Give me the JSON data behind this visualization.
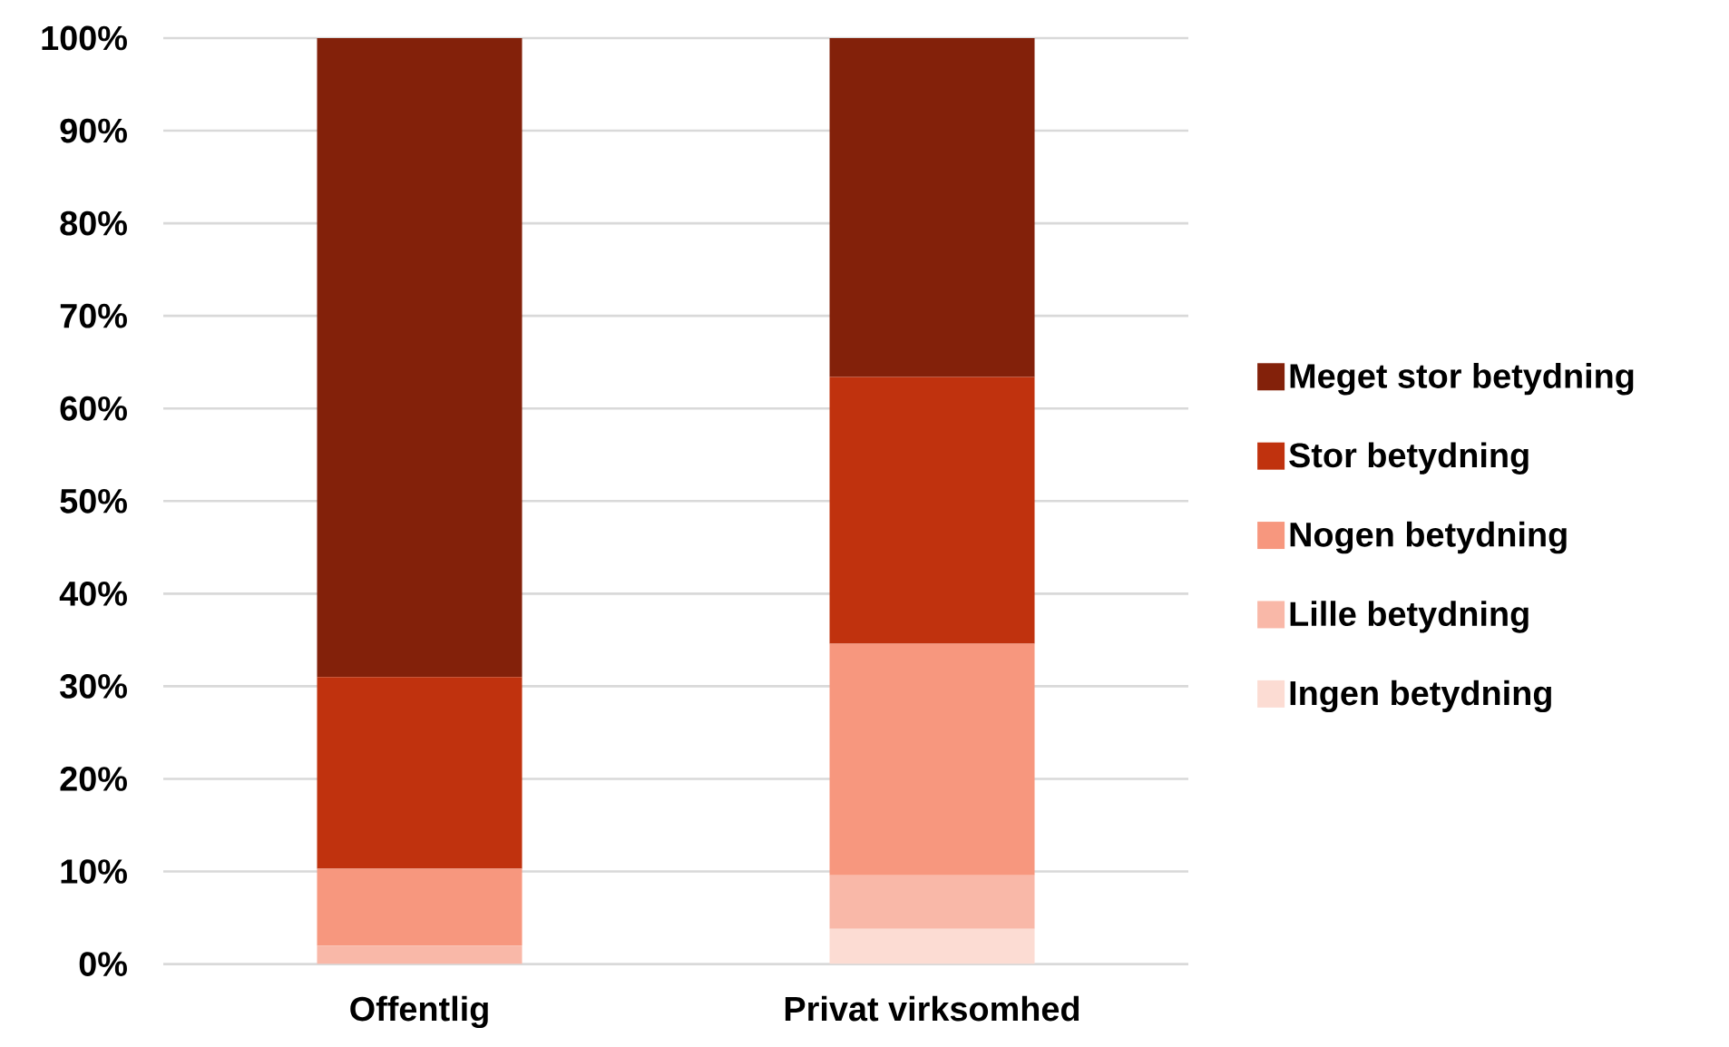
{
  "chart_data": {
    "type": "bar",
    "stacked": true,
    "categories": [
      "Offentlig",
      "Privat virksomhed"
    ],
    "series": [
      {
        "name": "Ingen betydning",
        "color": "#fcdcd3",
        "values": [
          0,
          3.8
        ]
      },
      {
        "name": "Lille betydning",
        "color": "#f9b8a8",
        "values": [
          2.0,
          5.8
        ]
      },
      {
        "name": "Nogen betydning",
        "color": "#f7977e",
        "values": [
          8.3,
          25.0
        ]
      },
      {
        "name": "Stor betydning",
        "color": "#c0320e",
        "values": [
          20.7,
          28.8
        ]
      },
      {
        "name": "Meget stor betydning",
        "color": "#83210a",
        "values": [
          69.0,
          36.6
        ]
      }
    ],
    "ylim": [
      0,
      100
    ],
    "yticks": [
      {
        "value": 0,
        "label": "0%"
      },
      {
        "value": 10,
        "label": "10%"
      },
      {
        "value": 20,
        "label": "20%"
      },
      {
        "value": 30,
        "label": "30%"
      },
      {
        "value": 40,
        "label": "40%"
      },
      {
        "value": 50,
        "label": "50%"
      },
      {
        "value": 60,
        "label": "60%"
      },
      {
        "value": 70,
        "label": "70%"
      },
      {
        "value": 80,
        "label": "80%"
      },
      {
        "value": 90,
        "label": "90%"
      },
      {
        "value": 100,
        "label": "100%"
      }
    ],
    "grid": "y",
    "legend": "right"
  }
}
